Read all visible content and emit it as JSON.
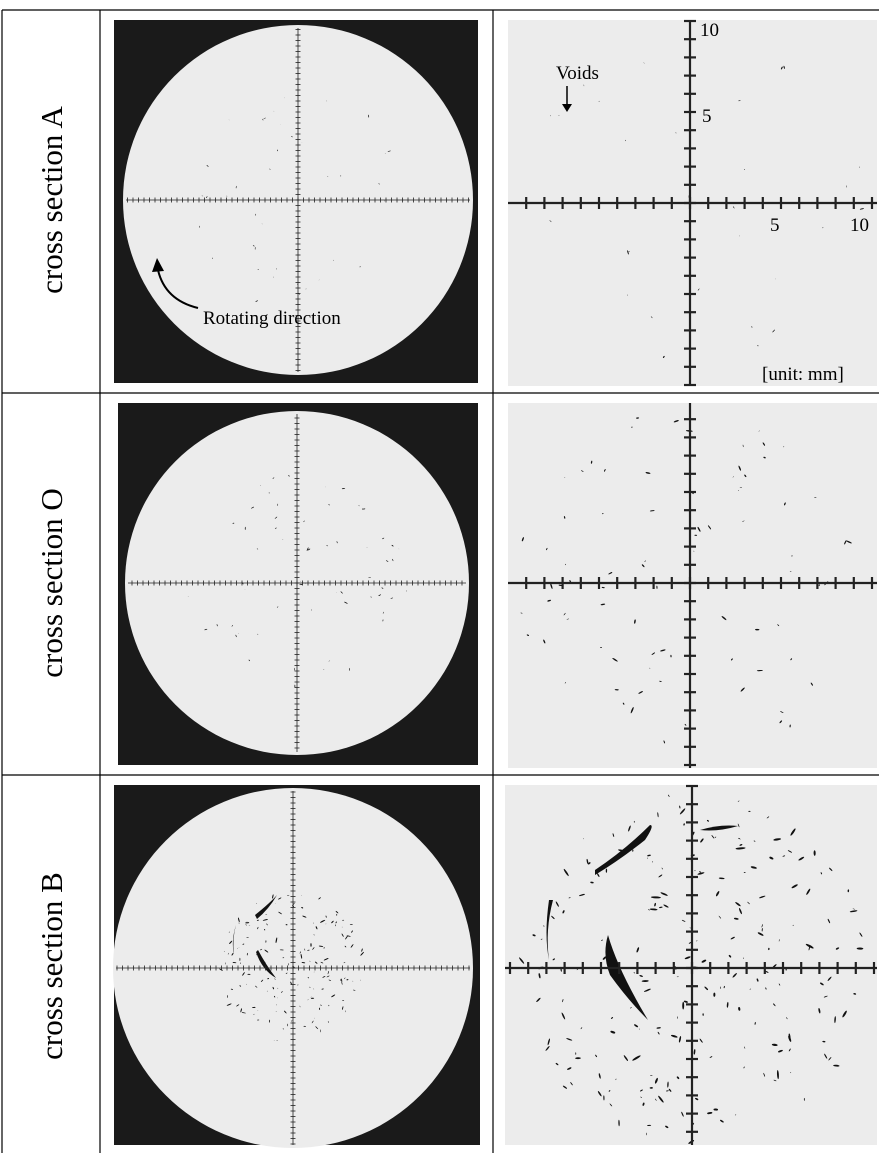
{
  "rows": [
    {
      "label": "cross section A"
    },
    {
      "label": "cross section O"
    },
    {
      "label": "cross section B"
    }
  ],
  "annotations": {
    "voids": "Voids",
    "rotating": "Rotating direction",
    "unit": "[unit: mm]"
  },
  "axis_labels": {
    "y_top": "10",
    "y_mid": "5",
    "x_mid": "5",
    "x_right": "10"
  }
}
